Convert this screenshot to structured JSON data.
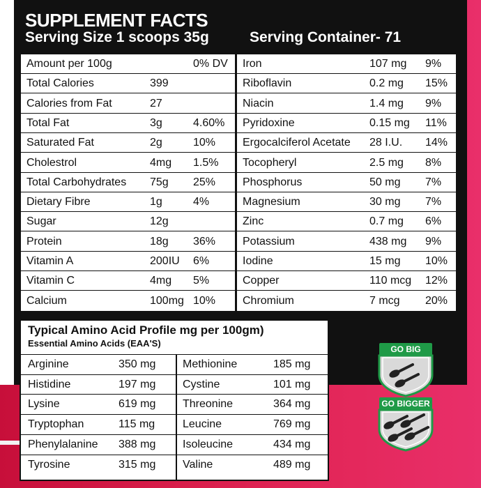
{
  "header": {
    "title": "SUPPLEMENT FACTS",
    "serving_size": "Serving Size 1 scoops 35g",
    "serving_container": "Serving Container- 71"
  },
  "facts_left": [
    {
      "name": "Amount per 100g",
      "amount": "",
      "dv": "0% DV"
    },
    {
      "name": "Total Calories",
      "amount": "399",
      "dv": ""
    },
    {
      "name": "Calories from Fat",
      "amount": "27",
      "dv": ""
    },
    {
      "name": "Total Fat",
      "amount": "3g",
      "dv": "4.60%"
    },
    {
      "name": "Saturated Fat",
      "amount": "2g",
      "dv": "10%"
    },
    {
      "name": "Cholestrol",
      "amount": "4mg",
      "dv": "1.5%"
    },
    {
      "name": "Total Carbohydrates",
      "amount": "75g",
      "dv": "25%"
    },
    {
      "name": "Dietary Fibre",
      "amount": "1g",
      "dv": "4%"
    },
    {
      "name": "Sugar",
      "amount": "12g",
      "dv": ""
    },
    {
      "name": "Protein",
      "amount": "18g",
      "dv": "36%"
    },
    {
      "name": "Vitamin A",
      "amount": "200IU",
      "dv": "6%"
    },
    {
      "name": "Vitamin C",
      "amount": "4mg",
      "dv": "5%"
    },
    {
      "name": "Calcium",
      "amount": "100mg",
      "dv": "10%"
    }
  ],
  "facts_right": [
    {
      "name": "Iron",
      "amount": "107 mg",
      "dv": "9%"
    },
    {
      "name": "Riboflavin",
      "amount": "0.2 mg",
      "dv": "15%"
    },
    {
      "name": "Niacin",
      "amount": "1.4 mg",
      "dv": "9%"
    },
    {
      "name": "Pyridoxine",
      "amount": "0.15 mg",
      "dv": "11%"
    },
    {
      "name": "Ergocalciferol Acetate",
      "amount": "28 I.U.",
      "dv": "14%"
    },
    {
      "name": "Tocopheryl",
      "amount": "2.5 mg",
      "dv": "8%"
    },
    {
      "name": "Phosphorus",
      "amount": "50 mg",
      "dv": "7%"
    },
    {
      "name": "Magnesium",
      "amount": "30 mg",
      "dv": "7%"
    },
    {
      "name": "Zinc",
      "amount": "0.7 mg",
      "dv": "6%"
    },
    {
      "name": "Potassium",
      "amount": "438 mg",
      "dv": "9%"
    },
    {
      "name": "Iodine",
      "amount": "15 mg",
      "dv": "10%"
    },
    {
      "name": "Copper",
      "amount": "110 mcg",
      "dv": "12%"
    },
    {
      "name": "Chromium",
      "amount": "7 mcg",
      "dv": "20%"
    }
  ],
  "amino": {
    "title": "Typical Amino Acid Profile mg per 100gm)",
    "subtitle": "Essential Amino Acids (EAA'S)",
    "left": [
      {
        "name": "Arginine",
        "amount": "350 mg"
      },
      {
        "name": "Histidine",
        "amount": "197 mg"
      },
      {
        "name": "Lysine",
        "amount": "619 mg"
      },
      {
        "name": "Tryptophan",
        "amount": "115 mg"
      },
      {
        "name": "Phenylalanine",
        "amount": "388 mg"
      },
      {
        "name": "Tyrosine",
        "amount": "315 mg"
      }
    ],
    "right": [
      {
        "name": "Methionine",
        "amount": "185 mg"
      },
      {
        "name": "Cystine",
        "amount": "101 mg"
      },
      {
        "name": "Threonine",
        "amount": "364 mg"
      },
      {
        "name": "Leucine",
        "amount": "769 mg"
      },
      {
        "name": "Isoleucine",
        "amount": "434 mg"
      },
      {
        "name": "Valine",
        "amount": "489 mg"
      }
    ]
  },
  "badges": [
    {
      "label": "GO BIG",
      "scoops": 2,
      "icon": "scoop-icon"
    },
    {
      "label": "GO BIGGER",
      "scoops": 4,
      "icon": "scoop-icon"
    }
  ],
  "colors": {
    "background_pink": "#d91e4b",
    "panel_black": "#111111",
    "badge_green": "#1f9a47",
    "shield_gray": "#d9d9d9"
  }
}
